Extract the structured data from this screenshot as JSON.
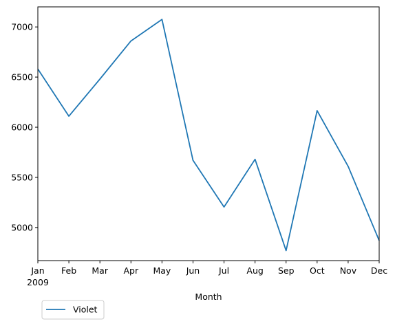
{
  "chart_data": {
    "type": "line",
    "categories": [
      "Jan",
      "Feb",
      "Mar",
      "Apr",
      "May",
      "Jun",
      "Jul",
      "Aug",
      "Sep",
      "Oct",
      "Nov",
      "Dec"
    ],
    "year_label": "2009",
    "series": [
      {
        "name": "Violet",
        "color": "#1f77b4",
        "values": [
          6580,
          6110,
          6480,
          6860,
          7075,
          5670,
          5205,
          5680,
          4770,
          6165,
          5610,
          4870
        ]
      }
    ],
    "xlabel": "Month",
    "ylabel": "",
    "ylim": [
      4670,
      7200
    ],
    "yticks": [
      5000,
      5500,
      6000,
      6500,
      7000
    ],
    "grid": false,
    "legend_position": "bottom-left (below axes)"
  }
}
